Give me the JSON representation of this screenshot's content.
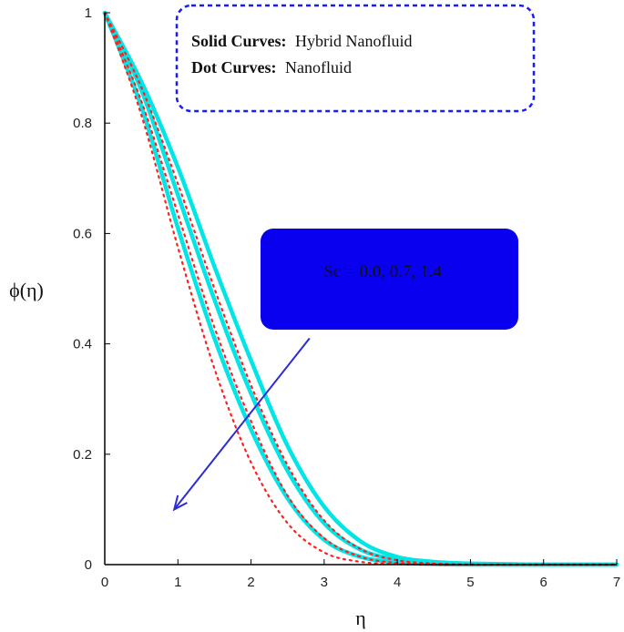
{
  "chart_data": {
    "type": "line",
    "xlabel": "η",
    "ylabel": "ϕ(η)",
    "xlim": [
      0,
      7
    ],
    "ylim": [
      0,
      1
    ],
    "xticks": [
      "0",
      "1",
      "2",
      "3",
      "4",
      "5",
      "6",
      "7"
    ],
    "yticks": [
      "0",
      "0.2",
      "0.4",
      "0.6",
      "0.8",
      "1"
    ],
    "grid": false,
    "legend": {
      "placement": "top",
      "solid_label": "Solid Curves:",
      "solid_value": "Hybrid Nanofluid",
      "dot_label": "Dot Curves:",
      "dot_value": "Nanofluid"
    },
    "annotation": {
      "text": "Sc = 0.0, 0.7, 1.4",
      "arrow_from": [
        2.8,
        0.41
      ],
      "arrow_to": [
        0.95,
        0.1
      ]
    },
    "x": [
      0,
      0.5,
      1,
      1.5,
      2,
      2.5,
      3,
      3.5,
      4,
      4.5,
      5,
      5.5,
      6,
      6.5,
      7
    ],
    "series": [
      {
        "style": "solid",
        "color": "#00e5e5",
        "values": [
          1.0,
          0.875,
          0.72,
          0.54,
          0.37,
          0.215,
          0.105,
          0.042,
          0.014,
          0.005,
          0.002,
          0.001,
          0.0,
          0.0,
          0.0
        ]
      },
      {
        "style": "solid",
        "color": "#00e5e5",
        "values": [
          1.0,
          0.86,
          0.67,
          0.48,
          0.31,
          0.17,
          0.075,
          0.027,
          0.009,
          0.003,
          0.001,
          0.0,
          0.0,
          0.0,
          0.0
        ]
      },
      {
        "style": "solid",
        "color": "#00e5e5",
        "values": [
          1.0,
          0.83,
          0.61,
          0.41,
          0.245,
          0.12,
          0.045,
          0.014,
          0.004,
          0.001,
          0.0,
          0.0,
          0.0,
          0.0,
          0.0
        ]
      },
      {
        "style": "dotted",
        "color": "#ff2020",
        "values": [
          1.0,
          0.865,
          0.69,
          0.5,
          0.325,
          0.18,
          0.08,
          0.028,
          0.008,
          0.002,
          0.0,
          0.0,
          0.0,
          0.0,
          0.0
        ]
      },
      {
        "style": "dotted",
        "color": "#ff2020",
        "values": [
          1.0,
          0.84,
          0.635,
          0.43,
          0.26,
          0.125,
          0.048,
          0.014,
          0.003,
          0.001,
          0.0,
          0.0,
          0.0,
          0.0,
          0.0
        ]
      },
      {
        "style": "dotted",
        "color": "#ff2020",
        "values": [
          1.0,
          0.815,
          0.575,
          0.355,
          0.185,
          0.075,
          0.022,
          0.005,
          0.001,
          0.0,
          0.0,
          0.0,
          0.0,
          0.0,
          0.0
        ]
      }
    ]
  }
}
